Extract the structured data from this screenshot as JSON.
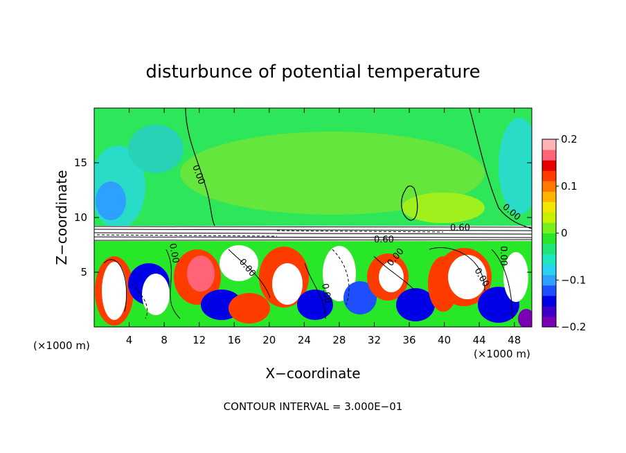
{
  "chart_data": {
    "type": "heatmap",
    "title": "disturbunce of potential temperature",
    "xlabel": "X−coordinate",
    "ylabel": "Z−coordinate",
    "x_unit": "(×1000 m)",
    "x_unit_right": "(×1000 m)",
    "xlim": [
      0,
      50
    ],
    "ylim": [
      0,
      20
    ],
    "x_ticks": [
      4,
      8,
      12,
      16,
      20,
      24,
      28,
      32,
      36,
      40,
      44,
      48
    ],
    "y_ticks": [
      5,
      10,
      15
    ],
    "colorbar": {
      "range": [
        -0.2,
        0.2
      ],
      "tick_values": [
        0.2,
        0.1,
        0,
        -0.1,
        -0.2
      ],
      "tick_labels": [
        "0.2",
        "0.1",
        "0",
        "−0.1",
        "−0.2"
      ],
      "colors": [
        "#7a00b4",
        "#3c00c8",
        "#0000e6",
        "#1e50ff",
        "#2ea0ff",
        "#28d2f0",
        "#1ee6be",
        "#1ee678",
        "#28e628",
        "#78f01e",
        "#c8f000",
        "#f0e600",
        "#ffb400",
        "#ff7800",
        "#ff3c00",
        "#e60000",
        "#ff6478",
        "#ffb4b4"
      ]
    },
    "contour_labels": [
      "0.00",
      "0.00",
      "0.60",
      "0.60",
      "0.00",
      "0.00",
      "0.00",
      "0.00",
      "0.00",
      "0.00"
    ],
    "background_mean_colors": {
      "upper_layer": "#1ee678",
      "strong_positive": "#ffffff",
      "strong_negative": "#ffffff"
    },
    "footer": "CONTOUR INTERVAL = 3.000E−01",
    "notes_visible": []
  }
}
